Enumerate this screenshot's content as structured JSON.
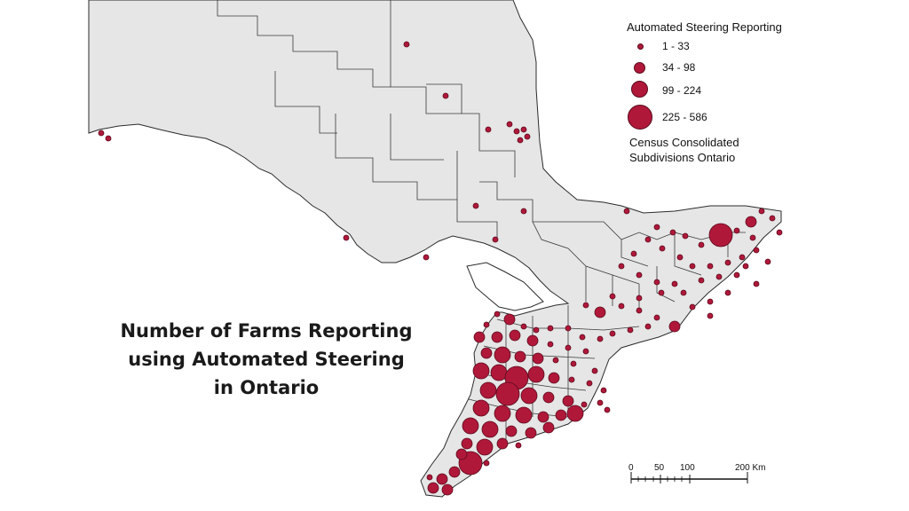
{
  "map": {
    "title_lines": [
      "Number of Farms Reporting",
      "using Automated Steering",
      "in Ontario"
    ],
    "legend": {
      "title": "Automated Steering Reporting",
      "classes": [
        {
          "label": "1 - 33",
          "size": "small"
        },
        {
          "label": "34 - 98",
          "size": "medium"
        },
        {
          "label": "99 - 224",
          "size": "large"
        },
        {
          "label": "225 - 586",
          "size": "xlarge"
        }
      ],
      "note_lines": [
        "Census Consolidated",
        "Subdivisions Ontario"
      ]
    },
    "scale_bar": {
      "labels": [
        "0",
        "50",
        "100",
        "200 Km"
      ]
    },
    "symbol_color": "#b0183a",
    "land_color": "#e6e6e6",
    "water_color": "#ffffff"
  }
}
